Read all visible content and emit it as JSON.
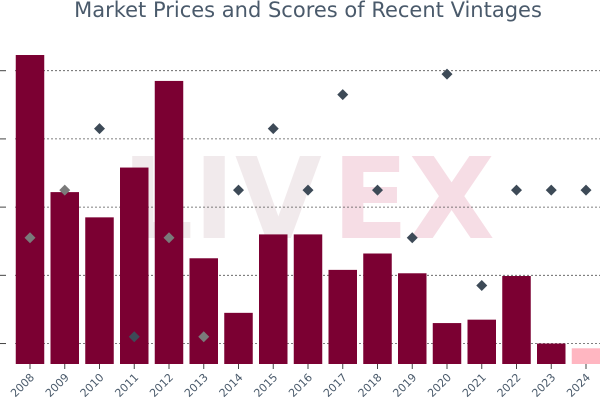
{
  "chart_data": {
    "type": "bar",
    "title": "Market Prices and Scores of Recent Vintages",
    "watermark": {
      "left": "LIV",
      "right": "EX"
    },
    "categories": [
      "2008",
      "2009",
      "2010",
      "2011",
      "2012",
      "2013",
      "2014",
      "2015",
      "2016",
      "2017",
      "2018",
      "2019",
      "2020",
      "2021",
      "2022",
      "2023",
      "2024"
    ],
    "series": [
      {
        "kind": "bar",
        "values": [
          4.53,
          2.52,
          2.15,
          2.88,
          4.15,
          1.55,
          0.75,
          1.9,
          1.9,
          1.38,
          1.62,
          1.33,
          0.6,
          0.65,
          1.29,
          0.3,
          0.23
        ],
        "colors": [
          "#7b0032",
          "#7b0032",
          "#7b0032",
          "#7b0032",
          "#7b0032",
          "#7b0032",
          "#7b0032",
          "#7b0032",
          "#7b0032",
          "#7b0032",
          "#7b0032",
          "#7b0032",
          "#7b0032",
          "#7b0032",
          "#7b0032",
          "#7b0032",
          "#ffb6c1"
        ]
      },
      {
        "kind": "scatter",
        "marker": "diamond",
        "values": [
          1.85,
          2.55,
          3.45,
          0.4,
          1.85,
          0.4,
          2.55,
          3.45,
          2.55,
          3.95,
          2.55,
          1.85,
          4.25,
          1.15,
          2.55,
          2.55,
          2.55
        ],
        "colors": [
          "#7a7a7a",
          "#7a7a7a",
          "#3d4a57",
          "#3d4a57",
          "#7a7a7a",
          "#7a7a7a",
          "#3d4a57",
          "#3d4a57",
          "#3d4a57",
          "#3d4a57",
          "#3d4a57",
          "#3d4a57",
          "#3d4a57",
          "#3d4a57",
          "#3d4a57",
          "#3d4a57",
          "#3d4a57"
        ]
      }
    ],
    "ylim": [
      0,
      4.75
    ],
    "gridlines": [
      0.3,
      1.3,
      2.3,
      3.3,
      4.3
    ],
    "grid": true,
    "tick_rotation": -45,
    "bar_color": "#7b0032",
    "highlight_color": "#ffb6c1"
  }
}
